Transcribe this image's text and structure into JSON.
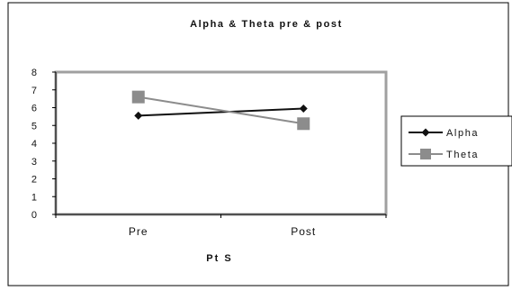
{
  "chart_data": {
    "type": "line",
    "title": "Alpha & Theta pre & post",
    "xlabel": "Pt S",
    "ylabel": "",
    "categories": [
      "Pre",
      "Post"
    ],
    "ylim": [
      0,
      8
    ],
    "yticks": [
      "0",
      "1",
      "2",
      "3",
      "4",
      "5",
      "6",
      "7",
      "8"
    ],
    "grid": false,
    "legend_position": "right",
    "series": [
      {
        "name": "Alpha",
        "values": [
          5.55,
          5.95
        ],
        "color": "#111111",
        "marker": "diamond"
      },
      {
        "name": "Theta",
        "values": [
          6.6,
          5.1
        ],
        "color": "#8c8c8c",
        "marker": "square"
      }
    ],
    "plot_border_color": "#a0a0a0"
  }
}
